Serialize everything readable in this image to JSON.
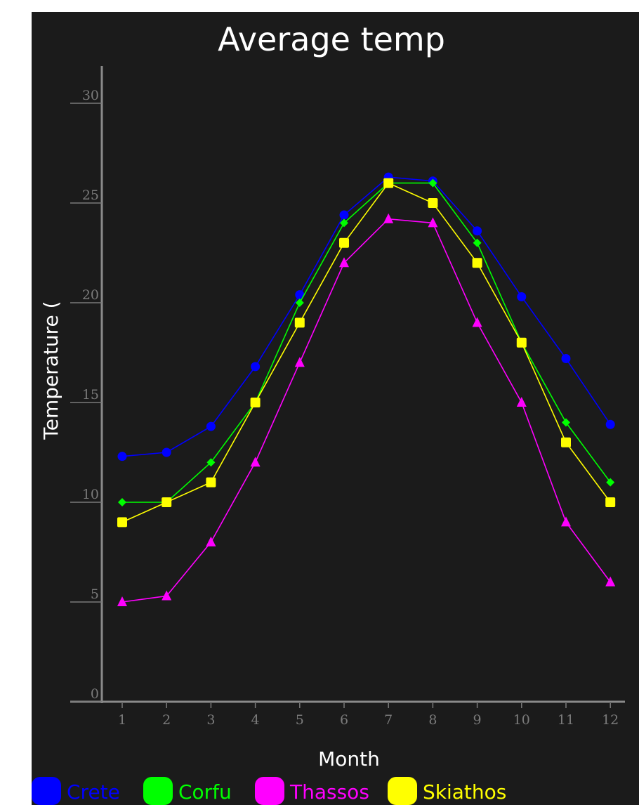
{
  "chart_data": {
    "type": "line",
    "title": "Average temp",
    "xlabel": "Month",
    "ylabel": "Temperature (",
    "x": [
      1,
      2,
      3,
      4,
      5,
      6,
      7,
      8,
      9,
      10,
      11,
      12
    ],
    "xticks": [
      "1",
      "2",
      "3",
      "4",
      "5",
      "6",
      "7",
      "8",
      "9",
      "10",
      "11",
      "12"
    ],
    "ylim": [
      0,
      30
    ],
    "yticks": [
      "0",
      "5",
      "10",
      "15",
      "20",
      "25",
      "30"
    ],
    "grid": false,
    "legend_position": "bottom",
    "series": [
      {
        "name": "Crete",
        "color": "#0000ff",
        "marker": "circle",
        "values": [
          12.3,
          12.5,
          13.8,
          16.8,
          20.4,
          24.4,
          26.3,
          26.1,
          23.6,
          20.3,
          17.2,
          13.9
        ]
      },
      {
        "name": "Corfu",
        "color": "#00ff00",
        "marker": "diamond",
        "values": [
          10,
          10,
          12,
          15,
          20,
          24,
          26,
          26,
          23,
          18,
          14,
          11
        ]
      },
      {
        "name": "Thassos",
        "color": "#ff00ff",
        "marker": "triangle",
        "values": [
          5,
          5.3,
          8,
          12,
          17,
          22,
          24.2,
          24,
          19,
          15,
          9,
          6
        ]
      },
      {
        "name": "Skiathos",
        "color": "#ffff00",
        "marker": "square",
        "values": [
          9,
          10,
          11,
          15,
          19,
          23,
          26,
          25,
          22,
          18,
          13,
          10
        ]
      }
    ]
  }
}
